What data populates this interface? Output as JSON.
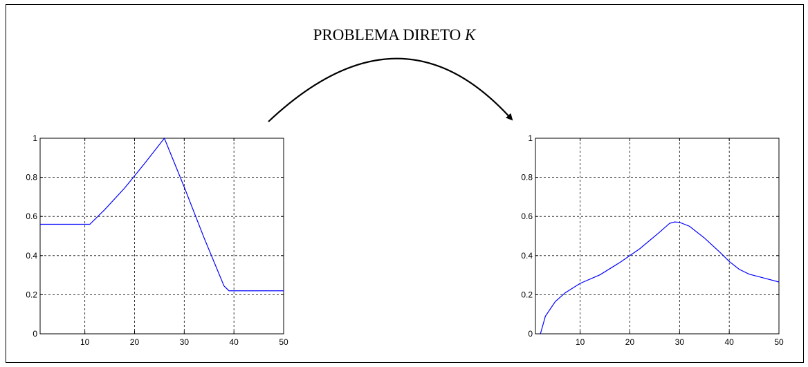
{
  "title": {
    "text": "PROBLEMA DIRETO ",
    "symbol": "K"
  },
  "arrow": {
    "icon": "curved-arrow-icon",
    "color": "#000000"
  },
  "chart_data": [
    {
      "type": "line",
      "title": "",
      "xlabel": "",
      "ylabel": "",
      "xlim": [
        1,
        50
      ],
      "ylim": [
        0,
        1
      ],
      "xticks": [
        10,
        20,
        30,
        40,
        50
      ],
      "yticks": [
        0,
        0.2,
        0.4,
        0.6,
        0.8,
        1
      ],
      "ytick_labels": [
        "0",
        "0.2",
        "0.4",
        "0.6",
        "0.8",
        "1"
      ],
      "grid": true,
      "color": "#0000ff",
      "series": [
        {
          "x": [
            1,
            11,
            14,
            18,
            22,
            26,
            30,
            34,
            38,
            39,
            40,
            50
          ],
          "y": [
            0.56,
            0.56,
            0.635,
            0.745,
            0.87,
            1.0,
            0.75,
            0.49,
            0.245,
            0.22,
            0.22,
            0.22
          ]
        }
      ]
    },
    {
      "type": "line",
      "title": "",
      "xlabel": "",
      "ylabel": "",
      "xlim": [
        1,
        50
      ],
      "ylim": [
        0,
        1
      ],
      "xticks": [
        10,
        20,
        30,
        40,
        50
      ],
      "yticks": [
        0,
        0.2,
        0.4,
        0.6,
        0.8,
        1
      ],
      "ytick_labels": [
        "0",
        "0.2",
        "0.4",
        "0.6",
        "0.8",
        "1"
      ],
      "grid": true,
      "color": "#0000ff",
      "series": [
        {
          "x": [
            2,
            3,
            5,
            7,
            10,
            14,
            18,
            22,
            26,
            28,
            29,
            30,
            32,
            35,
            38,
            40,
            42,
            44,
            47,
            50
          ],
          "y": [
            0,
            0.09,
            0.165,
            0.21,
            0.258,
            0.302,
            0.365,
            0.435,
            0.52,
            0.565,
            0.572,
            0.57,
            0.55,
            0.49,
            0.42,
            0.37,
            0.33,
            0.305,
            0.285,
            0.265
          ]
        }
      ]
    }
  ]
}
